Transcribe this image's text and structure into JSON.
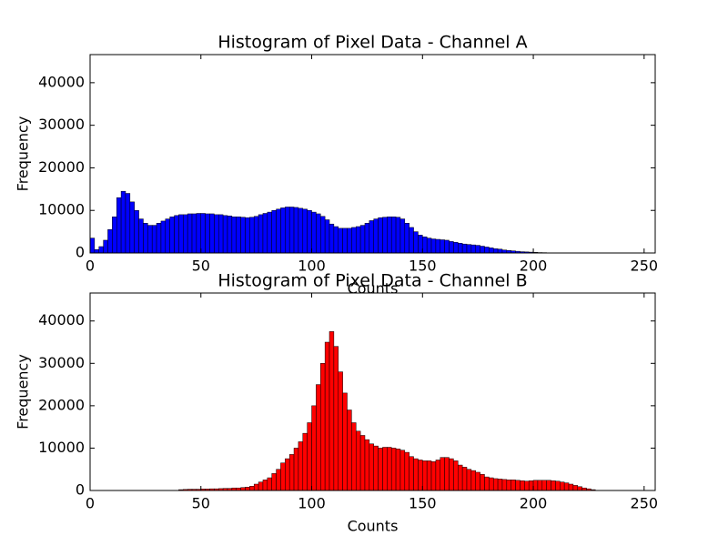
{
  "chart_data": [
    {
      "type": "histogram",
      "title": "Histogram of Pixel Data - Channel A",
      "x_label": "Counts",
      "y_label": "Frequency",
      "color": "#0000ff",
      "edge_color": "#000000",
      "bins": [
        0,
        2,
        4,
        6,
        8,
        10,
        12,
        14,
        16,
        18,
        20,
        22,
        24,
        26,
        28,
        30,
        32,
        34,
        36,
        38,
        40,
        42,
        44,
        46,
        48,
        50,
        52,
        54,
        56,
        58,
        60,
        62,
        64,
        66,
        68,
        70,
        72,
        74,
        76,
        78,
        80,
        82,
        84,
        86,
        88,
        90,
        92,
        94,
        96,
        98,
        100,
        102,
        104,
        106,
        108,
        110,
        112,
        114,
        116,
        118,
        120,
        122,
        124,
        126,
        128,
        130,
        132,
        134,
        136,
        138,
        140,
        142,
        144,
        146,
        148,
        150,
        152,
        154,
        156,
        158,
        160,
        162,
        164,
        166,
        168,
        170,
        172,
        174,
        176,
        178,
        180,
        182,
        184,
        186,
        188,
        190,
        192,
        194,
        196,
        198,
        200,
        202,
        204,
        206,
        208,
        210,
        212,
        214,
        216,
        218,
        220,
        222,
        224,
        226,
        228,
        230,
        232,
        234,
        236,
        238,
        240,
        242,
        244,
        246,
        248,
        250,
        252,
        254
      ],
      "counts": [
        3500,
        800,
        1500,
        3000,
        5500,
        8500,
        13000,
        14500,
        14000,
        12000,
        10000,
        8000,
        7000,
        6500,
        6500,
        7000,
        7500,
        8000,
        8500,
        8800,
        9000,
        9000,
        9200,
        9200,
        9300,
        9300,
        9200,
        9200,
        9000,
        9000,
        8800,
        8700,
        8500,
        8500,
        8400,
        8300,
        8400,
        8600,
        9000,
        9300,
        9600,
        10000,
        10300,
        10600,
        10800,
        10800,
        10700,
        10500,
        10300,
        10000,
        9600,
        9200,
        8600,
        7800,
        6800,
        6200,
        5800,
        5800,
        5800,
        6000,
        6200,
        6500,
        7000,
        7600,
        8000,
        8300,
        8400,
        8500,
        8500,
        8400,
        8000,
        7000,
        6000,
        5000,
        4200,
        3800,
        3500,
        3300,
        3200,
        3100,
        3000,
        2700,
        2500,
        2300,
        2100,
        2000,
        1900,
        1800,
        1600,
        1400,
        1200,
        1000,
        900,
        700,
        600,
        500,
        400,
        300,
        250,
        200,
        150,
        100,
        80,
        50,
        50,
        50,
        50,
        50,
        50,
        50,
        50,
        50,
        50,
        50,
        50,
        0,
        0,
        0,
        0,
        0,
        0,
        0,
        0,
        0,
        0,
        0,
        0
      ],
      "xlim": [
        0,
        255
      ],
      "xticks": [
        0,
        50,
        100,
        150,
        200,
        250
      ],
      "ylim": [
        0,
        46600
      ],
      "yticks": [
        0,
        10000,
        20000,
        30000,
        40000
      ]
    },
    {
      "type": "histogram",
      "title": "Histogram of Pixel Data - Channel B",
      "x_label": "Counts",
      "y_label": "Frequency",
      "color": "#ff0000",
      "edge_color": "#000000",
      "bins": [
        0,
        2,
        4,
        6,
        8,
        10,
        12,
        14,
        16,
        18,
        20,
        22,
        24,
        26,
        28,
        30,
        32,
        34,
        36,
        38,
        40,
        42,
        44,
        46,
        48,
        50,
        52,
        54,
        56,
        58,
        60,
        62,
        64,
        66,
        68,
        70,
        72,
        74,
        76,
        78,
        80,
        82,
        84,
        86,
        88,
        90,
        92,
        94,
        96,
        98,
        100,
        102,
        104,
        106,
        108,
        110,
        112,
        114,
        116,
        118,
        120,
        122,
        124,
        126,
        128,
        130,
        132,
        134,
        136,
        138,
        140,
        142,
        144,
        146,
        148,
        150,
        152,
        154,
        156,
        158,
        160,
        162,
        164,
        166,
        168,
        170,
        172,
        174,
        176,
        178,
        180,
        182,
        184,
        186,
        188,
        190,
        192,
        194,
        196,
        198,
        200,
        202,
        204,
        206,
        208,
        210,
        212,
        214,
        216,
        218,
        220,
        222,
        224,
        226,
        228,
        230,
        232,
        234,
        236,
        238,
        240,
        242,
        244,
        246,
        248,
        250,
        252,
        254
      ],
      "counts": [
        0,
        0,
        0,
        0,
        0,
        0,
        0,
        0,
        0,
        0,
        0,
        0,
        0,
        0,
        0,
        0,
        0,
        0,
        0,
        0,
        200,
        250,
        300,
        300,
        300,
        350,
        350,
        400,
        400,
        450,
        500,
        500,
        600,
        600,
        700,
        800,
        1000,
        1500,
        2000,
        2500,
        3000,
        4000,
        5000,
        6500,
        7500,
        8500,
        10000,
        11500,
        13500,
        16000,
        20000,
        25000,
        30000,
        35000,
        37500,
        34000,
        28000,
        23000,
        19000,
        16000,
        14000,
        13000,
        12000,
        11000,
        10500,
        10000,
        10200,
        10200,
        10000,
        9800,
        9500,
        9000,
        8000,
        7500,
        7200,
        7000,
        7000,
        6800,
        7200,
        7800,
        7800,
        7500,
        7000,
        6000,
        5500,
        5000,
        4700,
        4300,
        3800,
        3200,
        3000,
        2800,
        2700,
        2600,
        2500,
        2500,
        2400,
        2300,
        2200,
        2300,
        2400,
        2400,
        2400,
        2400,
        2300,
        2200,
        2000,
        1800,
        1500,
        1200,
        900,
        600,
        400,
        200,
        0,
        0,
        0,
        0,
        0,
        0,
        0,
        0,
        0,
        0,
        0,
        0,
        0
      ],
      "xlim": [
        0,
        255
      ],
      "xticks": [
        0,
        50,
        100,
        150,
        200,
        250
      ],
      "ylim": [
        0,
        46600
      ],
      "yticks": [
        0,
        10000,
        20000,
        30000,
        40000
      ]
    }
  ]
}
